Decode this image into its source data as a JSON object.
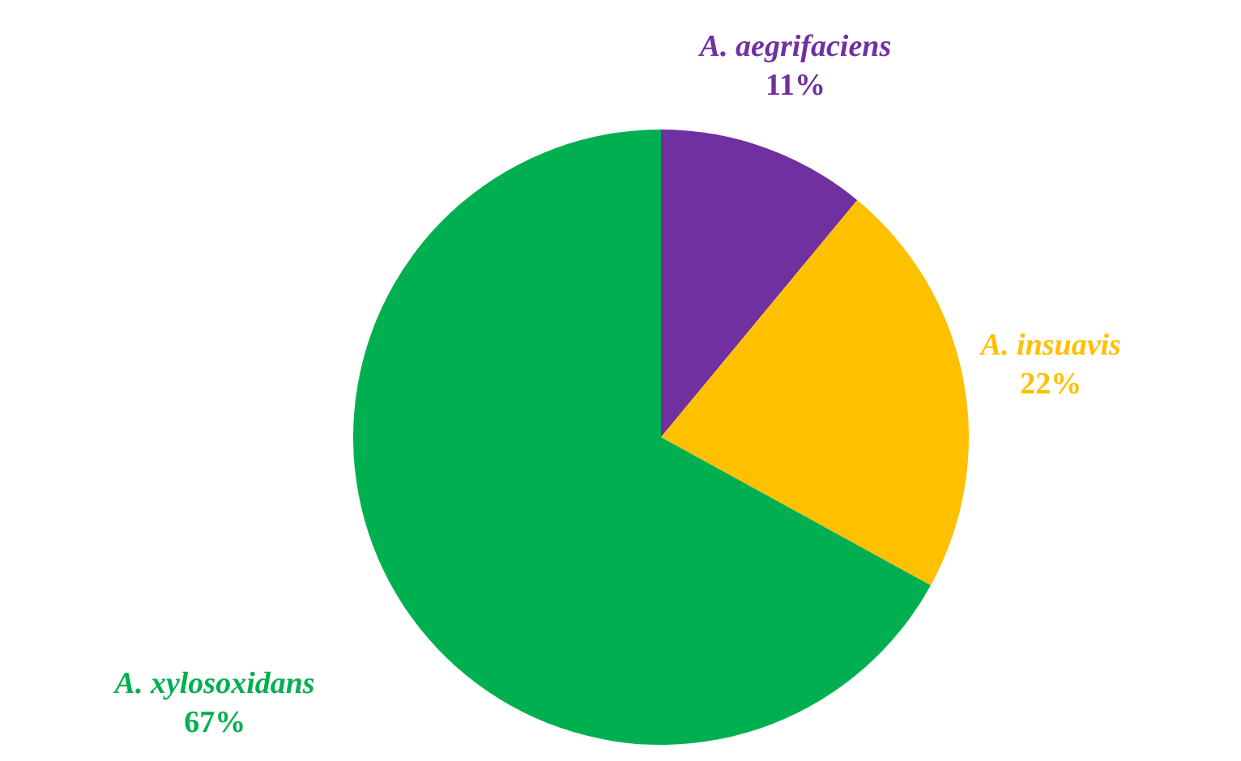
{
  "chart_data": {
    "type": "pie",
    "categories": [
      "A. aegrifaciens",
      "A. insuavis",
      "A. xylosoxidans"
    ],
    "values": [
      11,
      22,
      67
    ],
    "colors": [
      "#7030a0",
      "#ffc000",
      "#00b050"
    ],
    "value_labels": [
      "11%",
      "22%",
      "67%"
    ]
  }
}
